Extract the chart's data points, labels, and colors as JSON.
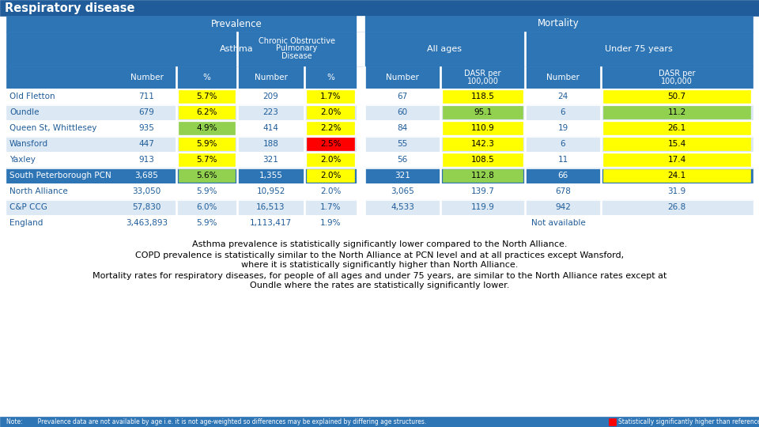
{
  "title": "Respiratory disease",
  "title_bg": "#1F5C99",
  "header_bg": "#2E75B6",
  "row_alt1": "#FFFFFF",
  "row_alt2": "#DCE9F5",
  "pcn_bg": "#2E75B6",
  "pcn_txt": "#FFFFFF",
  "data_txt": "#1F5C99",
  "white": "#FFFFFF",
  "rows": [
    {
      "label": "Old Fletton",
      "an": "711",
      "ap": "5.7%",
      "apc": "#FFFF00",
      "cn": "209",
      "cp": "1.7%",
      "cpc": "#FFFF00",
      "mn": "67",
      "md": "118.5",
      "mdc": "#FFFF00",
      "un": "24",
      "ud": "50.7",
      "udc": "#FFFF00",
      "pcn": false,
      "ref": false
    },
    {
      "label": "Oundle",
      "an": "679",
      "ap": "6.2%",
      "apc": "#FFFF00",
      "cn": "223",
      "cp": "2.0%",
      "cpc": "#FFFF00",
      "mn": "60",
      "md": "95.1",
      "mdc": "#92D050",
      "un": "6",
      "ud": "11.2",
      "udc": "#92D050",
      "pcn": false,
      "ref": false
    },
    {
      "label": "Queen St, Whittlesey",
      "an": "935",
      "ap": "4.9%",
      "apc": "#92D050",
      "cn": "414",
      "cp": "2.2%",
      "cpc": "#FFFF00",
      "mn": "84",
      "md": "110.9",
      "mdc": "#FFFF00",
      "un": "19",
      "ud": "26.1",
      "udc": "#FFFF00",
      "pcn": false,
      "ref": false
    },
    {
      "label": "Wansford",
      "an": "447",
      "ap": "5.9%",
      "apc": "#FFFF00",
      "cn": "188",
      "cp": "2.5%",
      "cpc": "#FF0000",
      "mn": "55",
      "md": "142.3",
      "mdc": "#FFFF00",
      "un": "6",
      "ud": "15.4",
      "udc": "#FFFF00",
      "pcn": false,
      "ref": false
    },
    {
      "label": "Yaxley",
      "an": "913",
      "ap": "5.7%",
      "apc": "#FFFF00",
      "cn": "321",
      "cp": "2.0%",
      "cpc": "#FFFF00",
      "mn": "56",
      "md": "108.5",
      "mdc": "#FFFF00",
      "un": "11",
      "ud": "17.4",
      "udc": "#FFFF00",
      "pcn": false,
      "ref": false
    },
    {
      "label": "South Peterborough PCN",
      "an": "3,685",
      "ap": "5.6%",
      "apc": "#92D050",
      "cn": "1,355",
      "cp": "2.0%",
      "cpc": "#FFFF00",
      "mn": "321",
      "md": "112.8",
      "mdc": "#92D050",
      "un": "66",
      "ud": "24.1",
      "udc": "#FFFF00",
      "pcn": true,
      "ref": false
    },
    {
      "label": "North Alliance",
      "an": "33,050",
      "ap": "5.9%",
      "apc": null,
      "cn": "10,952",
      "cp": "2.0%",
      "cpc": null,
      "mn": "3,065",
      "md": "139.7",
      "mdc": null,
      "un": "678",
      "ud": "31.9",
      "udc": null,
      "pcn": false,
      "ref": true
    },
    {
      "label": "C&P CCG",
      "an": "57,830",
      "ap": "6.0%",
      "apc": null,
      "cn": "16,513",
      "cp": "1.7%",
      "cpc": null,
      "mn": "4,533",
      "md": "119.9",
      "mdc": null,
      "un": "942",
      "ud": "26.8",
      "udc": null,
      "pcn": false,
      "ref": false
    },
    {
      "label": "England",
      "an": "3,463,893",
      "ap": "5.9%",
      "apc": null,
      "cn": "1,113,417",
      "cp": "1.9%",
      "cpc": null,
      "mn": null,
      "md": null,
      "mdc": null,
      "un": null,
      "ud": null,
      "udc": null,
      "pcn": false,
      "ref": false,
      "na": true
    }
  ],
  "note": "Note:        Prevalence data are not available by age i.e. it is not age-weighted so differences may be explained by differing age structures.",
  "legend_color": "#FF0000",
  "legend_text": "Statistically significantly higher than reference"
}
